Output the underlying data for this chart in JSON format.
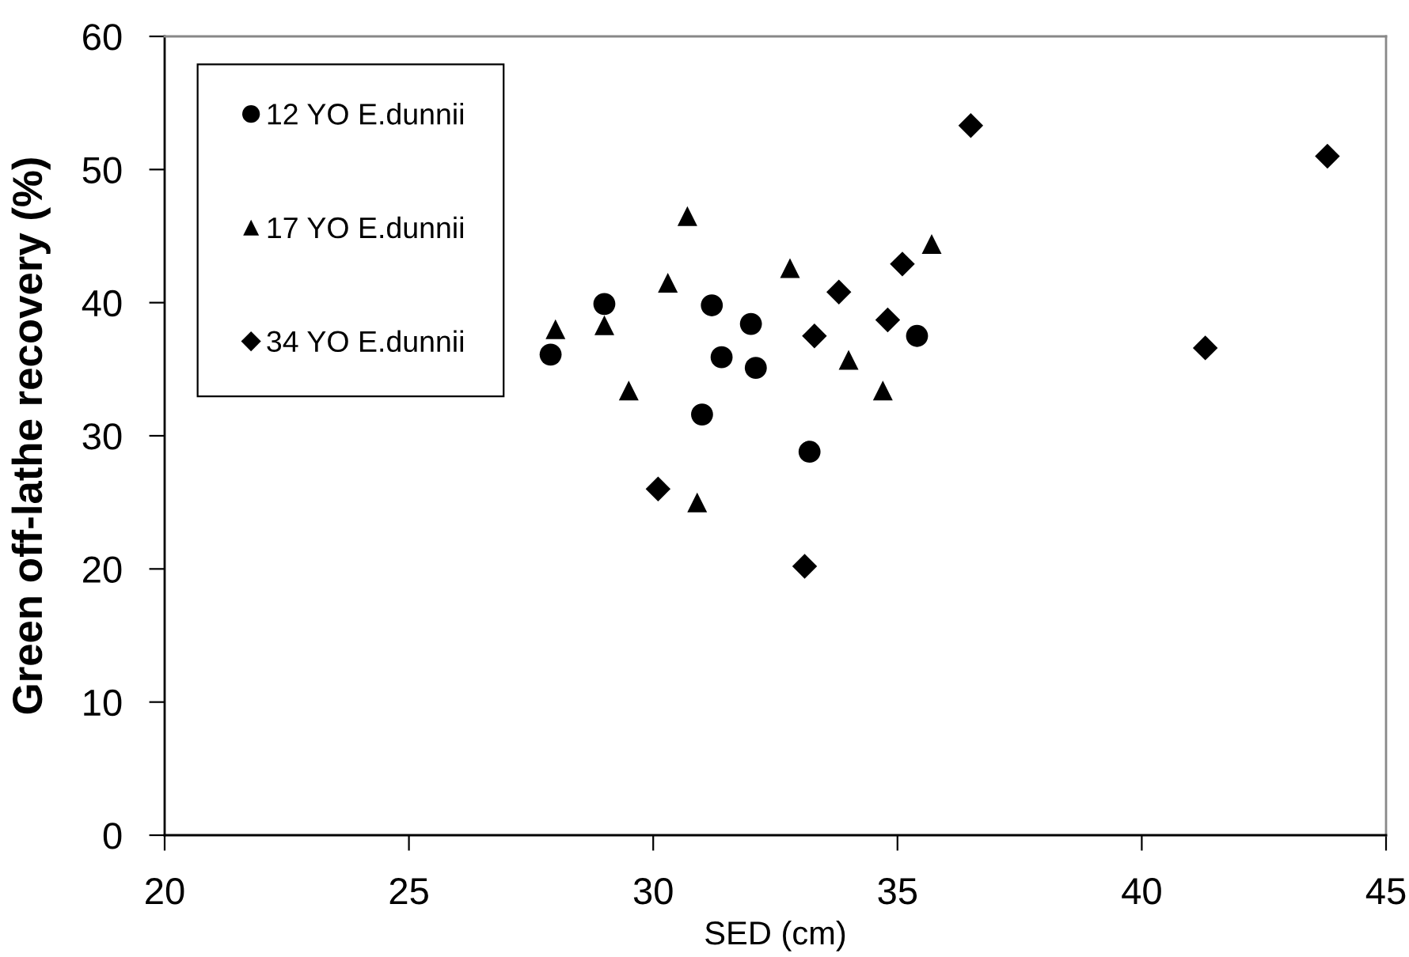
{
  "chart_data": {
    "type": "scatter",
    "xlabel": "SED (cm)",
    "ylabel": "Green off-lathe recovery (%)",
    "xlim": [
      20,
      45
    ],
    "xticks": [
      20,
      25,
      30,
      35,
      40,
      45
    ],
    "ylim": [
      0,
      60
    ],
    "yticks": [
      0,
      10,
      20,
      30,
      40,
      50,
      60
    ],
    "grid": false,
    "legend": "top left",
    "series": [
      {
        "name": "12 YO E.dunnii",
        "color": "#000000",
        "marker": "circle",
        "x": [
          27.9,
          29.0,
          31.2,
          32.0,
          31.4,
          32.1,
          31.0,
          33.2,
          35.4
        ],
        "values": [
          36.1,
          39.9,
          39.8,
          38.4,
          35.9,
          35.1,
          31.6,
          28.8,
          37.5
        ]
      },
      {
        "name": "17 YO E.dunnii",
        "color": "#000000",
        "marker": "triangle",
        "x": [
          28.0,
          29.0,
          29.5,
          30.3,
          30.7,
          30.9,
          32.8,
          34.0,
          34.7,
          35.7
        ],
        "values": [
          38.0,
          38.3,
          33.4,
          41.5,
          46.5,
          25.0,
          42.6,
          35.7,
          33.4,
          44.4
        ]
      },
      {
        "name": "34 YO E.dunnii",
        "color": "#000000",
        "marker": "diamond",
        "x": [
          30.1,
          33.3,
          33.8,
          34.8,
          35.1,
          33.1,
          36.5,
          43.8,
          41.3
        ],
        "values": [
          26.0,
          37.5,
          40.8,
          38.7,
          42.9,
          20.2,
          53.3,
          51.0,
          36.6
        ]
      }
    ]
  }
}
